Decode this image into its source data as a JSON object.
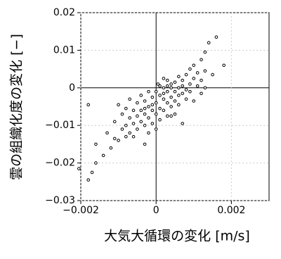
{
  "chart_data": {
    "type": "scatter",
    "xlabel": "大気大循環の変化 [m/s]",
    "ylabel": "雲の組織化度の変化 [−]",
    "xlim": [
      -0.002,
      0.003
    ],
    "ylim": [
      -0.03,
      0.02
    ],
    "xticks": [
      {
        "value": -0.002,
        "label": "−0.002"
      },
      0,
      0.002
    ],
    "yticks": [
      {
        "value": -0.03,
        "label": "−0.03"
      },
      {
        "value": -0.02,
        "label": "−0.02"
      },
      {
        "value": -0.01,
        "label": "−0.01"
      },
      0,
      0.01,
      0.02
    ],
    "grid": true,
    "color": "#000000",
    "x": [
      -0.00205,
      -0.0018,
      -0.0017,
      -0.0016,
      -0.0018,
      -0.0016,
      -0.0014,
      -0.0013,
      -0.0012,
      -0.0011,
      -0.0011,
      -0.001,
      -0.001,
      -0.0009,
      -0.0009,
      -0.0008,
      -0.0008,
      -0.0008,
      -0.0007,
      -0.0007,
      -0.0007,
      -0.0006,
      -0.0006,
      -0.0006,
      -0.0005,
      -0.0005,
      -0.0005,
      -0.0004,
      -0.0004,
      -0.0004,
      -0.0003,
      -0.0003,
      -0.0003,
      -0.0003,
      -0.0002,
      -0.0002,
      -0.0002,
      -0.0002,
      -0.0001,
      -0.0001,
      -0.0001,
      0,
      0,
      0,
      0,
      5e-05,
      0.0001,
      0.0001,
      0.0001,
      0.0002,
      0.0002,
      0.0002,
      0.0002,
      0.0003,
      0.0003,
      0.0003,
      0.0003,
      0.0004,
      0.0004,
      0.0004,
      0.0004,
      0.0005,
      0.0005,
      0.0005,
      0.0005,
      0.0006,
      0.0006,
      0.0006,
      0.0006,
      0.0007,
      0.0007,
      0.0007,
      0.0007,
      0.0008,
      0.0008,
      0.0008,
      0.0009,
      0.0009,
      0.0009,
      0.001,
      0.001,
      0.001,
      0.0011,
      0.0011,
      0.0012,
      0.0012,
      0.0013,
      0.0013,
      0.0014,
      0.0015,
      0.0016,
      0.0018,
      0.0013,
      0.0012,
      -0.0001,
      0.0002,
      0.0003,
      0.0001,
      0.0004,
      -0.0003
    ],
    "y": [
      -0.0215,
      -0.0245,
      -0.0225,
      -0.02,
      -0.0045,
      -0.015,
      -0.018,
      -0.012,
      -0.016,
      -0.0135,
      -0.009,
      -0.014,
      -0.0045,
      -0.011,
      -0.007,
      -0.013,
      -0.01,
      -0.0055,
      -0.008,
      -0.012,
      -0.003,
      -0.006,
      -0.0095,
      -0.013,
      -0.004,
      -0.0075,
      -0.011,
      -0.002,
      -0.006,
      -0.009,
      -0.0035,
      -0.007,
      -0.01,
      -0.015,
      -0.001,
      -0.005,
      -0.008,
      -0.012,
      -0.0025,
      -0.006,
      -0.0095,
      -0.001,
      -0.004,
      -0.007,
      -0.011,
      0.001,
      -0.002,
      -0.0055,
      -0.0085,
      0,
      -0.003,
      -0.006,
      0.0025,
      -0.001,
      -0.004,
      -0.0075,
      0.002,
      0,
      -0.0025,
      -0.005,
      0.001,
      -0.001,
      -0.0035,
      0.0015,
      -0.007,
      0,
      -0.002,
      0.003,
      -0.0045,
      0.0005,
      -0.0015,
      0.002,
      -0.0095,
      -0.0005,
      0.0035,
      -0.003,
      0.001,
      -0.001,
      0.005,
      0.0025,
      -0.0035,
      0.006,
      0.0005,
      0.004,
      0.0075,
      0.002,
      0.0095,
      0.0045,
      0.012,
      0.0035,
      0.0135,
      0.006,
      0,
      -0.0015,
      -0.0045,
      -0.0015,
      0.0005,
      0.0005,
      -0.0075,
      -0.0055
    ]
  }
}
